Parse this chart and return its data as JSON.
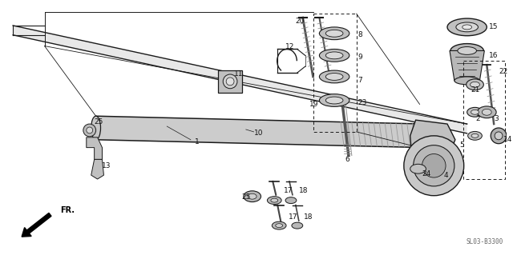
{
  "bg_color": "#ffffff",
  "diagram_code": "SL03-B3300",
  "direction_label": "FR.",
  "fig_width": 6.4,
  "fig_height": 3.19,
  "dpi": 100,
  "line_color": "#1a1a1a",
  "text_color": "#111111",
  "gray_fill": "#d0d0d0",
  "gray_dark": "#888888",
  "gray_mid": "#b0b0b0",
  "font_size_parts": 6.5,
  "font_size_code": 5.5
}
